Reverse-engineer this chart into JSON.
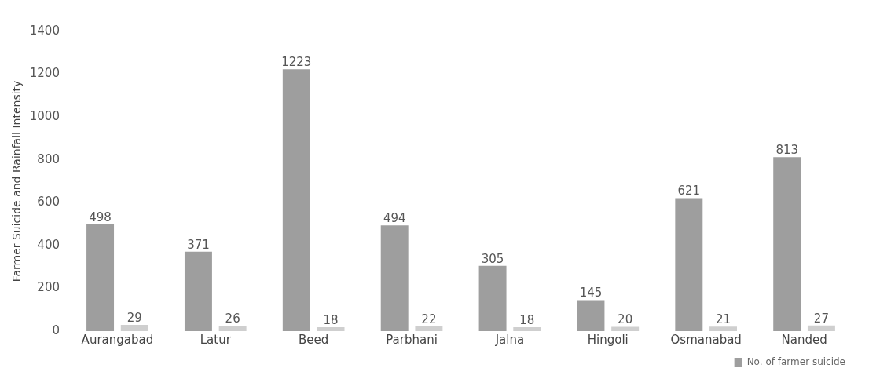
{
  "chart_data": {
    "type": "bar",
    "ylabel": "Farmer Suicide and Rainfall Intensity",
    "categories": [
      "Aurangabad",
      "Latur",
      "Beed",
      "Parbhani",
      "Jalna",
      "Hingoli",
      "Osmanabad",
      "Nanded"
    ],
    "series": [
      {
        "name": "No. of farmer suicide",
        "color": "#9e9e9e",
        "values": [
          498,
          371,
          1223,
          494,
          305,
          145,
          621,
          813
        ]
      },
      {
        "color": "#cfcfcf",
        "values": [
          29,
          26,
          18,
          22,
          18,
          20,
          21,
          27
        ]
      }
    ],
    "ylim": [
      0,
      1400
    ],
    "yticks": [
      0,
      200,
      400,
      600,
      800,
      1000,
      1200,
      1400
    ],
    "grid": false,
    "data_labels": true,
    "legend": "bottom right"
  }
}
